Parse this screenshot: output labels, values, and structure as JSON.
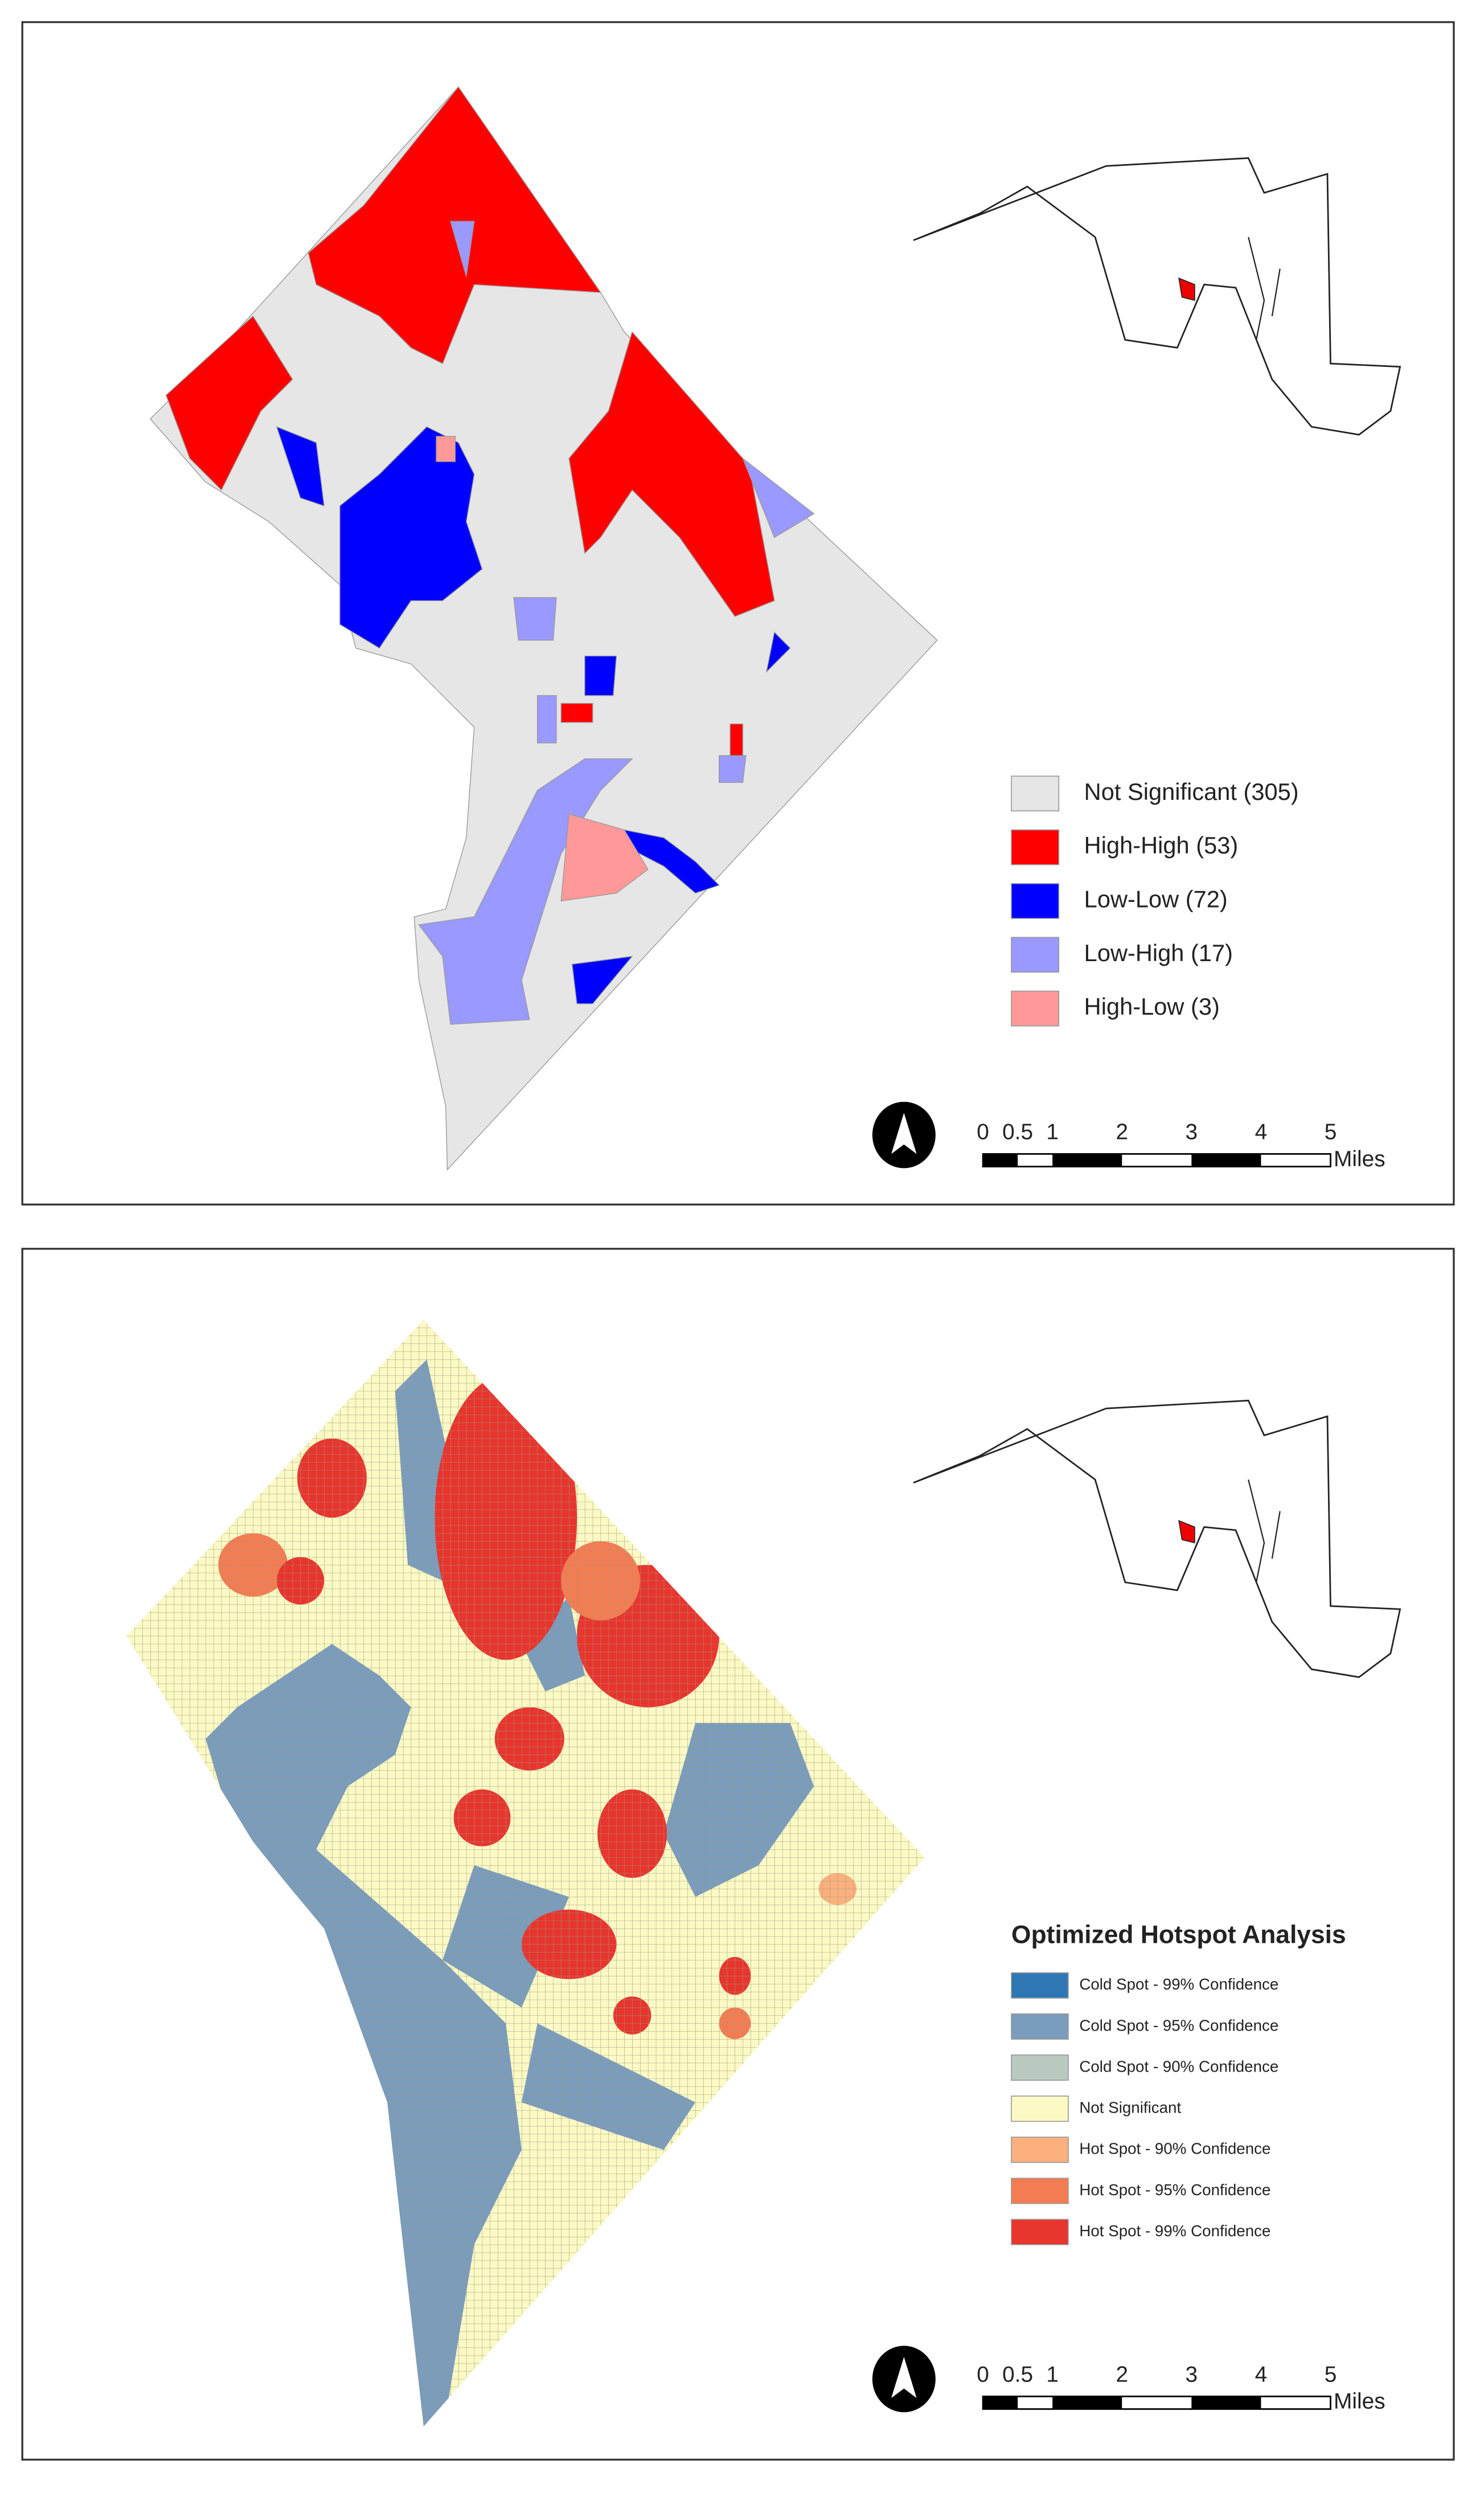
{
  "panels": [
    {
      "legend": [
        {
          "label": "Not Significant (305)",
          "color": "#e6e6e6"
        },
        {
          "label": "High-High (53)",
          "color": "#ff0000"
        },
        {
          "label": "Low-Low (72)",
          "color": "#0000ff"
        },
        {
          "label": "Low-High (17)",
          "color": "#9999ff"
        },
        {
          "label": "High-Low (3)",
          "color": "#ff9999"
        }
      ],
      "scale_bar": {
        "ticks": [
          0,
          0.5,
          1,
          2,
          3,
          4,
          5
        ],
        "unit": "Miles"
      }
    },
    {
      "legend_title": "Optimized Hotspot Analysis",
      "legend": [
        {
          "label": "Cold Spot - 99% Confidence",
          "color": "#2f77b4"
        },
        {
          "label": "Cold Spot - 95% Confidence",
          "color": "#7a9cbd"
        },
        {
          "label": "Cold Spot - 90% Confidence",
          "color": "#b9c9c0"
        },
        {
          "label": "Not Significant",
          "color": "#fcfac4"
        },
        {
          "label": "Hot Spot - 90% Confidence",
          "color": "#fbb07e"
        },
        {
          "label": "Hot Spot - 95% Confidence",
          "color": "#f47c52"
        },
        {
          "label": "Hot Spot - 99% Confidence",
          "color": "#e8352e"
        }
      ],
      "scale_bar": {
        "ticks": [
          0,
          0.5,
          1,
          2,
          3,
          4,
          5
        ],
        "unit": "Miles"
      }
    }
  ]
}
